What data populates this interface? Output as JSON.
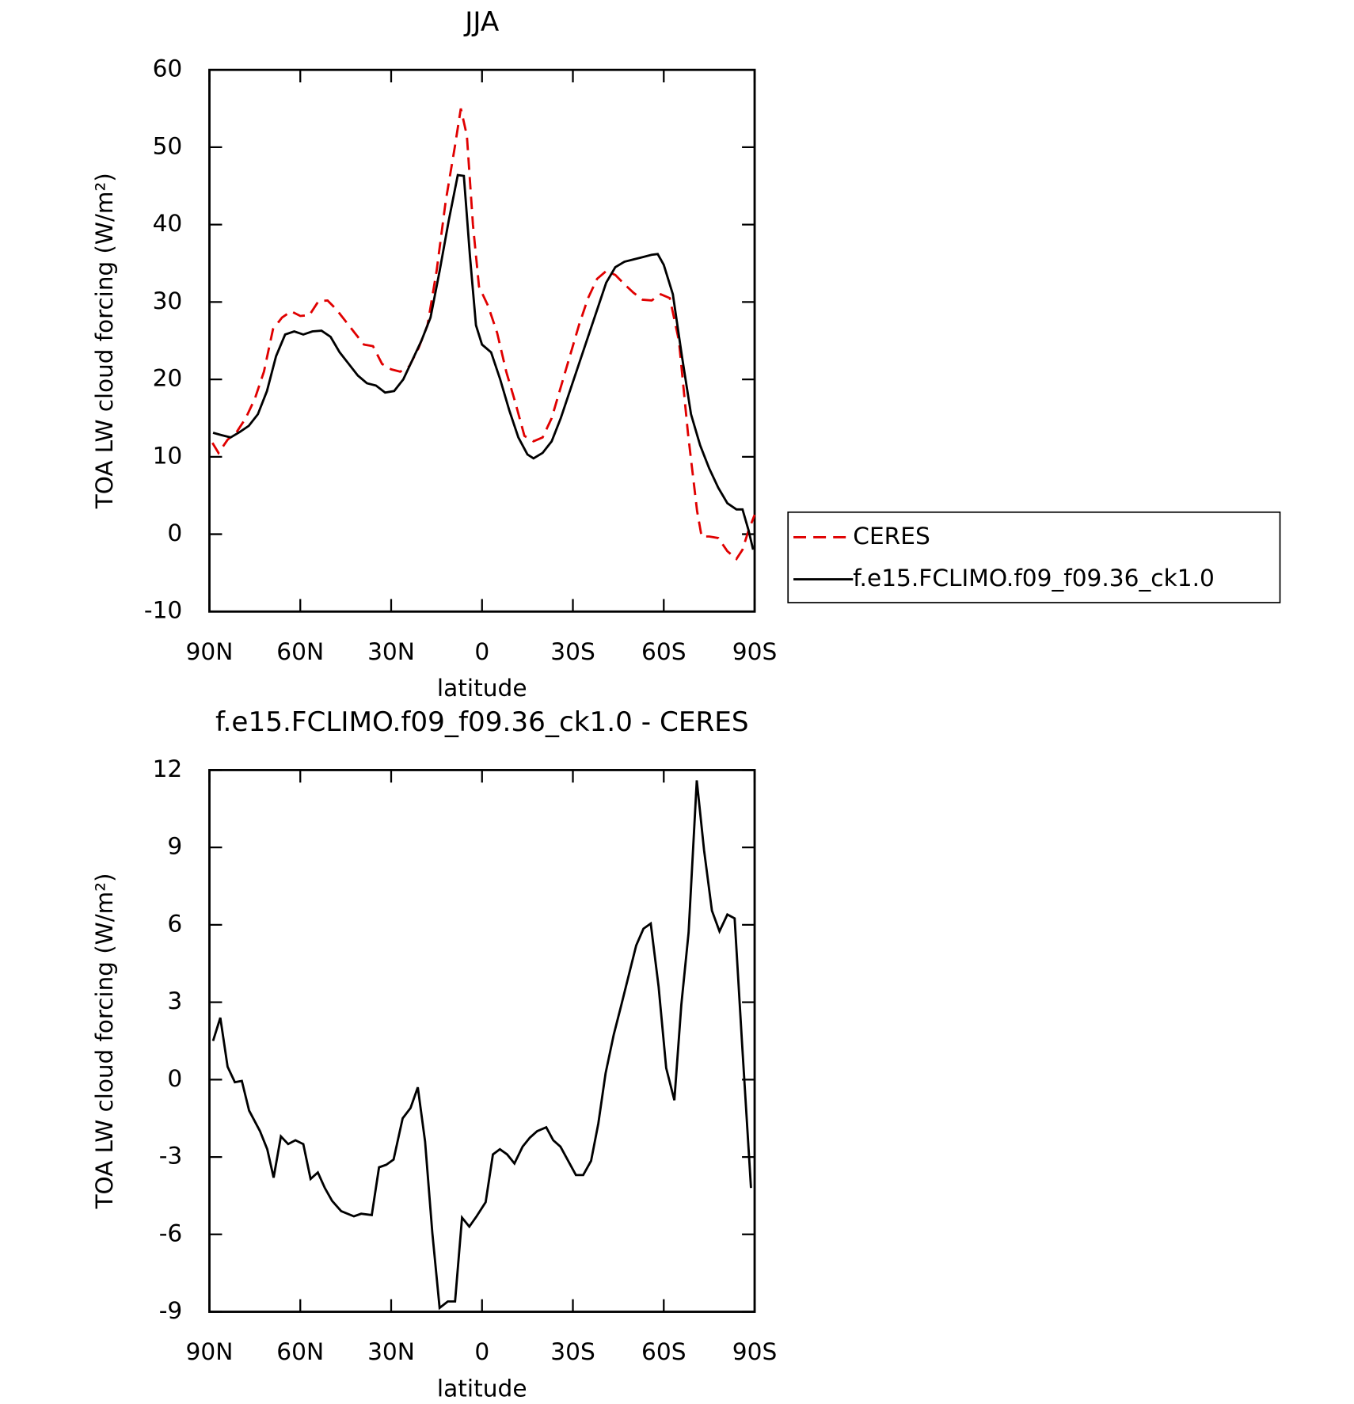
{
  "chart_data": [
    {
      "type": "line",
      "title": "JJA",
      "xlabel": "latitude",
      "ylabel": "TOA LW cloud forcing (W/m²)",
      "xlim": [
        90,
        -90
      ],
      "xticks": [
        {
          "value": 90,
          "label": "90N"
        },
        {
          "value": 60,
          "label": "60N"
        },
        {
          "value": 30,
          "label": "30N"
        },
        0,
        {
          "value": -30,
          "label": "30S"
        },
        {
          "value": -60,
          "label": "60S"
        },
        {
          "value": -90,
          "label": "90S"
        }
      ],
      "ylim": [
        -10,
        60
      ],
      "yticks": [
        -10,
        0,
        10,
        20,
        30,
        40,
        50,
        60
      ],
      "legend": "right",
      "series": [
        {
          "name": "CERES",
          "color": "#e00000",
          "dash": true,
          "x": [
            89,
            87,
            84,
            81,
            78,
            75,
            72,
            69,
            66,
            63,
            60,
            57,
            54,
            51,
            48,
            45,
            42,
            39,
            36,
            33,
            30,
            27,
            24,
            21,
            18,
            15,
            12,
            9,
            7,
            5,
            3,
            1,
            -2,
            -5,
            -8,
            -11,
            -14,
            -17,
            -20,
            -23,
            -26,
            -29,
            -32,
            -35,
            -38,
            -41,
            -44,
            -47,
            -50,
            -53,
            -56,
            -59,
            -62,
            -65,
            -68,
            -71,
            -72.5,
            -75,
            -78,
            -81,
            -84,
            -86,
            -88,
            -90
          ],
          "values": [
            11.8,
            10.5,
            12.2,
            13.2,
            15,
            17.5,
            21,
            26.5,
            28,
            28.8,
            28.2,
            28.3,
            30.1,
            30.2,
            29,
            27.5,
            26,
            24.5,
            24.3,
            22,
            21.3,
            21,
            21.7,
            24,
            27,
            34,
            43,
            50,
            55,
            51.5,
            40,
            32,
            29.5,
            26,
            21,
            17,
            12.7,
            12,
            12.5,
            15,
            19,
            23,
            27,
            30.5,
            33,
            34,
            33.5,
            32.3,
            31.2,
            30.3,
            30.2,
            31,
            30.5,
            25,
            13,
            3,
            -0.3,
            -0.3,
            -0.5,
            -2.2,
            -3.2,
            -2,
            0.5,
            2.5
          ]
        },
        {
          "name": "f.e15.FCLIMO.f09_f09.36_ck1.0",
          "color": "#000000",
          "dash": false,
          "x": [
            88.8,
            86,
            83,
            80,
            77,
            74,
            71,
            68,
            65,
            62,
            59,
            56,
            53,
            50,
            47,
            44,
            41,
            38,
            35,
            32,
            29,
            26,
            23,
            20,
            17,
            14,
            11,
            8,
            6,
            4,
            2,
            0,
            -3,
            -6,
            -9,
            -12,
            -15,
            -17,
            -20,
            -23,
            -26,
            -29,
            -32,
            -35,
            -38,
            -41,
            -44,
            -47,
            -50,
            -53,
            -56,
            -58,
            -60,
            -63,
            -66,
            -69,
            -72,
            -75,
            -78,
            -81,
            -84,
            -86,
            -88,
            -89.5
          ],
          "values": [
            13.1,
            12.8,
            12.5,
            13.2,
            14,
            15.5,
            18.5,
            23,
            25.8,
            26.2,
            25.8,
            26.2,
            26.3,
            25.5,
            23.5,
            22,
            20.5,
            19.5,
            19.2,
            18.3,
            18.5,
            20,
            22.5,
            25,
            28,
            34,
            40.5,
            46.4,
            46.3,
            36,
            27,
            24.5,
            23.5,
            20,
            16,
            12.5,
            10.3,
            9.8,
            10.5,
            12,
            15,
            18.5,
            22,
            25.5,
            29,
            32.5,
            34.5,
            35.2,
            35.5,
            35.8,
            36.1,
            36.2,
            34.8,
            31,
            23,
            15.5,
            11.5,
            8.5,
            6,
            4,
            3.2,
            3.2,
            0.5,
            -2
          ]
        }
      ]
    },
    {
      "type": "line",
      "title": "f.e15.FCLIMO.f09_f09.36_ck1.0 - CERES",
      "xlabel": "latitude",
      "ylabel": "TOA LW cloud forcing (W/m²)",
      "xlim": [
        90,
        -90
      ],
      "xticks": [
        {
          "value": 90,
          "label": "90N"
        },
        {
          "value": 60,
          "label": "60N"
        },
        {
          "value": 30,
          "label": "30N"
        },
        0,
        {
          "value": -30,
          "label": "30S"
        },
        {
          "value": -60,
          "label": "60S"
        },
        {
          "value": -90,
          "label": "90S"
        }
      ],
      "ylim": [
        -9,
        12
      ],
      "yticks": [
        -9,
        -6,
        -3,
        0,
        3,
        6,
        9,
        12
      ],
      "series": [
        {
          "color": "#000000",
          "dash": false,
          "x": [
            88.8,
            86.4,
            84.0,
            81.6,
            79.3,
            76.9,
            73.3,
            70.9,
            68.8,
            66.4,
            64.0,
            61.6,
            59.0,
            56.6,
            54.2,
            51.9,
            49.5,
            46.5,
            42.3,
            39.9,
            36.4,
            34.0,
            31.6,
            29.2,
            26.2,
            23.6,
            21.2,
            18.8,
            16.4,
            14.0,
            11.3,
            8.9,
            6.6,
            4.2,
            1.8,
            -1.2,
            -3.6,
            -5.9,
            -8.3,
            -10.7,
            -13.4,
            -15.8,
            -18.2,
            -21.2,
            -23.5,
            -25.9,
            -31.0,
            -33.4,
            -36.0,
            -38.4,
            -40.8,
            -43.5,
            -45.9,
            -50.9,
            -53.3,
            -55.7,
            -58.3,
            -60.8,
            -63.5,
            -65.8,
            -68.2,
            -70.9,
            -73.3,
            -75.9,
            -78.4,
            -81.0,
            -83.4,
            -85.8,
            -88.8
          ],
          "values": [
            1.5,
            2.4,
            0.5,
            -0.1,
            -0.05,
            -1.2,
            -2,
            -2.7,
            -3.8,
            -2.2,
            -2.5,
            -2.35,
            -2.5,
            -3.85,
            -3.6,
            -4.2,
            -4.7,
            -5.1,
            -5.3,
            -5.2,
            -5.25,
            -3.4,
            -3.3,
            -3.1,
            -1.5,
            -1.1,
            -0.3,
            -2.4,
            -5.95,
            -8.85,
            -8.6,
            -8.6,
            -5.35,
            -5.7,
            -5.3,
            -4.75,
            -2.9,
            -2.7,
            -2.9,
            -3.25,
            -2.6,
            -2.25,
            -2,
            -1.85,
            -2.35,
            -2.6,
            -3.7,
            -3.7,
            -3.15,
            -1.7,
            0.25,
            1.75,
            2.85,
            5.2,
            5.85,
            6.05,
            3.6,
            0.45,
            -0.8,
            2.9,
            5.7,
            11.6,
            8.9,
            6.55,
            5.75,
            6.4,
            6.25,
            1.5,
            -4.2
          ]
        }
      ]
    }
  ]
}
